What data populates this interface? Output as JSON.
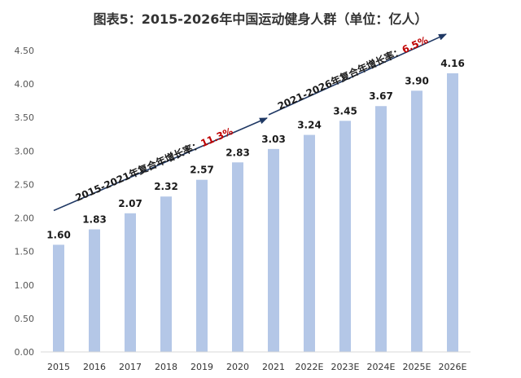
{
  "chart_data": {
    "type": "bar",
    "title": "图表5：2015-2026年中国运动健身人群（单位：亿人）",
    "categories": [
      "2015",
      "2016",
      "2017",
      "2018",
      "2019",
      "2020",
      "2021",
      "2022E",
      "2023E",
      "2024E",
      "2025E",
      "2026E"
    ],
    "values": [
      1.6,
      1.83,
      2.07,
      2.32,
      2.57,
      2.83,
      3.03,
      3.24,
      3.45,
      3.67,
      3.9,
      4.16
    ],
    "value_labels": [
      "1.60",
      "1.83",
      "2.07",
      "2.32",
      "2.57",
      "2.83",
      "3.03",
      "3.24",
      "3.45",
      "3.67",
      "3.90",
      "4.16"
    ],
    "ylim": [
      0,
      4.5
    ],
    "yticks": [
      "0.00",
      "0.50",
      "1.00",
      "1.50",
      "2.00",
      "2.50",
      "3.00",
      "3.50",
      "4.00",
      "4.50"
    ],
    "grid": false,
    "bar_color": "#b4c7e7",
    "arrow_color": "#1f3864",
    "rate_color": "#c00000",
    "annotations": [
      {
        "text": "2015-2021年复合年增长率：",
        "rate": "11.3%",
        "from": "2015",
        "to": "2021"
      },
      {
        "text": "2021-2026年复合年增长率：",
        "rate": "6.5%",
        "from": "2021",
        "to": "2026E"
      }
    ]
  }
}
